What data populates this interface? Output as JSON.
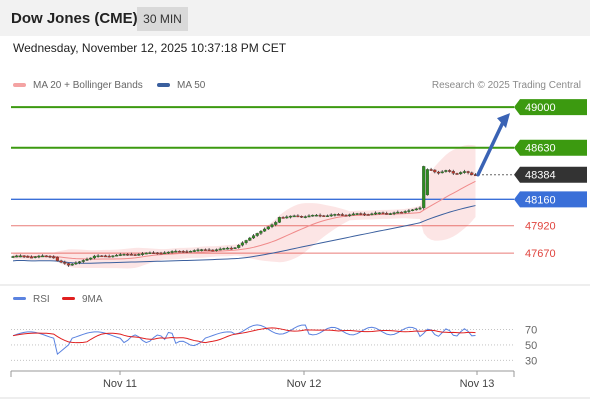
{
  "header": {
    "title": "Dow Jones (CME)",
    "timeframe": "30 MIN"
  },
  "datetime": "Wednesday, November 12, 2025 10:37:18 PM CET",
  "legend": {
    "ma20": {
      "label": "MA 20 + Bollinger Bands",
      "color": "#f4a3a3"
    },
    "ma50": {
      "label": "MA 50",
      "color": "#3a5f9e"
    }
  },
  "credit": "Research © 2025 Trading Central",
  "rsi_legend": {
    "rsi": {
      "label": "RSI",
      "color": "#5b83e0"
    },
    "ma9": {
      "label": "9MA",
      "color": "#e01f1f"
    }
  },
  "chart_data": [
    {
      "type": "candlestick",
      "ylim": [
        47380,
        49110
      ],
      "x_labels": [
        "Nov 11",
        "Nov 12",
        "Nov 13"
      ],
      "price_levels": [
        {
          "value": 49000,
          "label": "49000",
          "kind": "resistance-target",
          "color": "#3c9a10"
        },
        {
          "value": 48630,
          "label": "48630",
          "kind": "resistance",
          "color": "#3c9a10"
        },
        {
          "value": 48384,
          "label": "48384",
          "kind": "last-price",
          "color": "#333333"
        },
        {
          "value": 48160,
          "label": "48160",
          "kind": "pivot",
          "color": "#3a6fd8"
        },
        {
          "value": 47920,
          "label": "47920",
          "kind": "support",
          "color": "#e0443e"
        },
        {
          "value": 47670,
          "label": "47670",
          "kind": "support",
          "color": "#e0443e"
        }
      ],
      "forecast_arrow": {
        "from": 48384,
        "to": 49000,
        "color": "#3a63b5"
      },
      "last_price": 48384
    },
    {
      "type": "line",
      "name": "RSI",
      "ylim": [
        20,
        85
      ],
      "levels": [
        70,
        50,
        30
      ],
      "level_labels": [
        "70",
        "50",
        "30"
      ]
    }
  ]
}
